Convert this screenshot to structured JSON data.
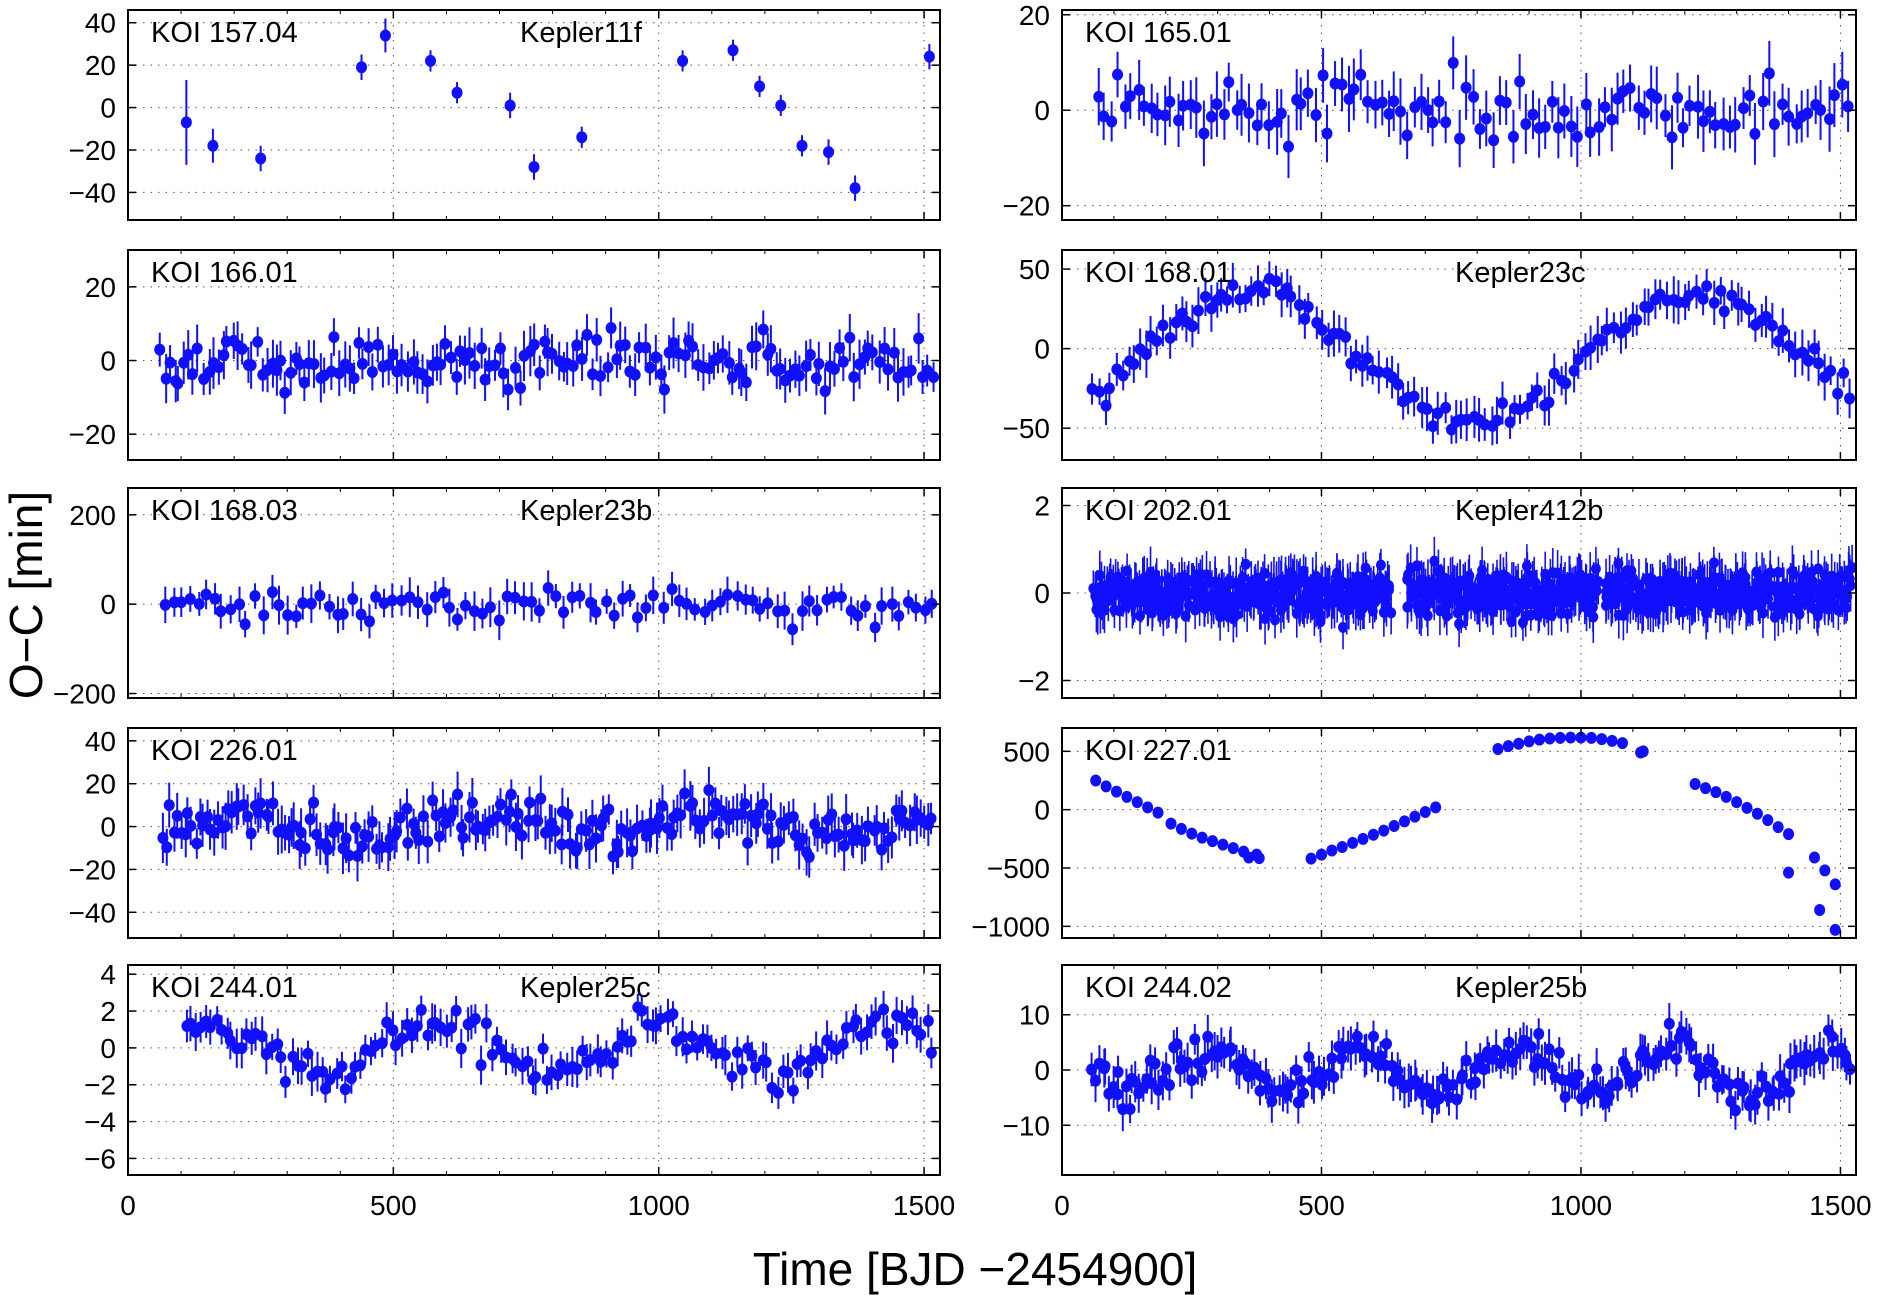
{
  "figure": {
    "xlabel": "Time [BJD −2454900]",
    "ylabel": "O−C [min]",
    "marker_color": "#1010ff",
    "axis_color": "#000000"
  },
  "chart_data": [
    {
      "type": "scatter",
      "title": "KOI 157.04",
      "name": "Kepler11f",
      "xlim": [
        0,
        1530
      ],
      "ylim": [
        -53,
        46
      ],
      "yticks": [
        -40,
        -20,
        0,
        20,
        40
      ],
      "xticks": [
        0,
        500,
        1000,
        1500
      ],
      "ytick_labels": [
        "−40",
        "−20",
        "0",
        "20",
        "40"
      ],
      "xtick_labels": [
        "0",
        "500",
        "1000",
        "1500"
      ],
      "show_xtick_labels": false,
      "x": [
        110,
        160,
        250,
        440,
        485,
        570,
        620,
        720,
        765,
        855,
        1045,
        1140,
        1190,
        1230,
        1270,
        1320,
        1370,
        1510
      ],
      "y": [
        -7,
        -18,
        -24,
        19,
        34,
        22,
        7,
        1,
        -28,
        -14,
        22,
        27,
        10,
        1,
        -18,
        -21,
        -38,
        24
      ],
      "err": [
        20,
        8,
        6,
        6,
        8,
        5,
        5,
        6,
        6,
        5,
        5,
        5,
        5,
        5,
        5,
        6,
        6,
        6
      ]
    },
    {
      "type": "scatter",
      "title": "KOI 165.01",
      "name": "",
      "xlim": [
        0,
        1530
      ],
      "ylim": [
        -23,
        21
      ],
      "yticks": [
        -20,
        0,
        20
      ],
      "xticks": [
        0,
        500,
        1000,
        1500
      ],
      "ytick_labels": [
        "−20",
        "0",
        "20"
      ],
      "xtick_labels": [
        "0",
        "500",
        "1000",
        "1500"
      ],
      "show_xtick_labels": false,
      "x": [
        75,
        90,
        110,
        125,
        145,
        160,
        180,
        195,
        210,
        225,
        245,
        260,
        275,
        300,
        320,
        345,
        370,
        395,
        430,
        450,
        480,
        505,
        530,
        550,
        575,
        600,
        625,
        650,
        675,
        700,
        730,
        760,
        790,
        820,
        860,
        880,
        900,
        930,
        960,
        990,
        1020,
        1050,
        1080,
        1110,
        1140,
        1170,
        1200,
        1230,
        1260,
        1290,
        1320,
        1350,
        1380,
        1410,
        1440,
        1470,
        1500
      ],
      "x_rest": [
        70,
        85,
        100,
        120,
        135,
        150,
        170,
        185,
        200,
        215,
        235,
        250,
        265,
        285,
        310,
        335,
        360,
        380,
        410,
        440,
        465,
        490,
        515,
        540,
        565,
        590,
        615,
        640,
        665,
        690,
        720,
        745,
        775,
        805,
        835,
        870,
        895,
        920,
        950,
        980,
        1010,
        1040,
        1065,
        1095,
        1125,
        1155,
        1185,
        1215,
        1245,
        1275,
        1305,
        1335,
        1365,
        1395,
        1425,
        1455,
        1485,
        1515
      ],
      "seed": 165,
      "npts": 115,
      "spread": 7,
      "err_lo": 4,
      "err_hi": 7
    },
    {
      "type": "scatter",
      "title": "KOI 166.01",
      "name": "",
      "xlim": [
        0,
        1530
      ],
      "ylim": [
        -27,
        30
      ],
      "yticks": [
        -20,
        0,
        20
      ],
      "xticks": [
        0,
        500,
        1000,
        1500
      ],
      "ytick_labels": [
        "−20",
        "0",
        "20"
      ],
      "xtick_labels": [
        "0",
        "500",
        "1000",
        "1500"
      ],
      "show_xtick_labels": false,
      "seed": 166,
      "npts": 160,
      "spread": 7,
      "err_lo": 4,
      "err_hi": 7,
      "x_start": 60,
      "x_end": 1515
    },
    {
      "type": "scatter",
      "title": "KOI 168.01",
      "name": "Kepler23c",
      "xlim": [
        0,
        1530
      ],
      "ylim": [
        -70,
        62
      ],
      "yticks": [
        -50,
        0,
        50
      ],
      "xticks": [
        0,
        500,
        1000,
        1500
      ],
      "ytick_labels": [
        "−50",
        "0",
        "50"
      ],
      "xtick_labels": [
        "0",
        "500",
        "1000",
        "1500"
      ],
      "show_xtick_labels": false,
      "seed": 168,
      "npts": 130,
      "spread": 10,
      "err_lo": 8,
      "err_hi": 15,
      "x_start": 60,
      "x_end": 1515,
      "trend": "koi168"
    },
    {
      "type": "scatter",
      "title": "KOI 168.03",
      "name": "Kepler23b",
      "xlim": [
        0,
        1530
      ],
      "ylim": [
        -210,
        260
      ],
      "yticks": [
        -200,
        0,
        200
      ],
      "xticks": [
        0,
        500,
        1000,
        1500
      ],
      "ytick_labels": [
        "−200",
        "0",
        "200"
      ],
      "xtick_labels": [
        "0",
        "500",
        "1000",
        "1500"
      ],
      "show_xtick_labels": false,
      "seed": 1683,
      "npts": 95,
      "spread": 45,
      "err_lo": 25,
      "err_hi": 45,
      "x_start": 70,
      "x_end": 1515
    },
    {
      "type": "scatter",
      "title": "KOI 202.01",
      "name": "Kepler412b",
      "xlim": [
        0,
        1530
      ],
      "ylim": [
        -2.4,
        2.4
      ],
      "yticks": [
        -2,
        0,
        2
      ],
      "xticks": [
        0,
        500,
        1000,
        1500
      ],
      "ytick_labels": [
        "−2",
        "0",
        "2"
      ],
      "xtick_labels": [
        "0",
        "500",
        "1000",
        "1500"
      ],
      "show_xtick_labels": false,
      "seed": 202,
      "npts": 900,
      "spread": 0.55,
      "err_lo": 0.35,
      "err_hi": 0.6,
      "x_start": 60,
      "x_end": 1520,
      "gaps": [
        [
          635,
          665
        ],
        [
          1035,
          1045
        ]
      ]
    },
    {
      "type": "scatter",
      "title": "KOI 226.01",
      "name": "",
      "xlim": [
        0,
        1530
      ],
      "ylim": [
        -52,
        46
      ],
      "yticks": [
        -40,
        -20,
        0,
        20,
        40
      ],
      "xticks": [
        0,
        500,
        1000,
        1500
      ],
      "ytick_labels": [
        "−40",
        "−20",
        "0",
        "20",
        "40"
      ],
      "xtick_labels": [
        "0",
        "500",
        "1000",
        "1500"
      ],
      "show_xtick_labels": false,
      "seed": 226,
      "npts": 210,
      "spread": 12,
      "err_lo": 7,
      "err_hi": 12,
      "x_start": 65,
      "x_end": 1515
    },
    {
      "type": "scatter",
      "title": "KOI 227.01",
      "name": "",
      "xlim": [
        0,
        1530
      ],
      "ylim": [
        -1100,
        700
      ],
      "yticks": [
        -1000,
        -500,
        0,
        500
      ],
      "xticks": [
        0,
        500,
        1000,
        1500
      ],
      "ytick_labels": [
        "−1000",
        "−500",
        "0",
        "500"
      ],
      "xtick_labels": [
        "0",
        "500",
        "1000",
        "1500"
      ],
      "show_xtick_labels": false,
      "x": [
        65,
        85,
        105,
        125,
        145,
        165,
        185,
        210,
        230,
        250,
        270,
        290,
        310,
        330,
        350,
        375,
        480,
        500,
        520,
        540,
        560,
        580,
        600,
        620,
        640,
        660,
        680,
        700,
        720,
        840,
        860,
        880,
        900,
        920,
        940,
        960,
        980,
        1000,
        1020,
        1040,
        1060,
        1080,
        1120,
        1220,
        1240,
        1260,
        1280,
        1300,
        1320,
        1340,
        1360,
        1380,
        1400,
        1450,
        1470,
        1490
      ],
      "y": [
        250,
        200,
        155,
        110,
        65,
        20,
        -25,
        -120,
        -165,
        -205,
        -240,
        -270,
        -300,
        -330,
        -360,
        -385,
        -420,
        -385,
        -350,
        -320,
        -285,
        -250,
        -215,
        -180,
        -140,
        -100,
        -60,
        -20,
        20,
        520,
        545,
        565,
        585,
        600,
        610,
        615,
        618,
        618,
        615,
        605,
        590,
        570,
        500,
        220,
        185,
        150,
        110,
        65,
        15,
        -35,
        -90,
        -150,
        -210,
        -410,
        -520,
        -640
      ],
      "x_extra": [
        360,
        380,
        1115,
        1400,
        1460,
        1490
      ],
      "y_extra": [
        -410,
        -415,
        490,
        -540,
        -860,
        -1030
      ],
      "err": [
        10
      ]
    },
    {
      "type": "scatter",
      "title": "KOI 244.01",
      "name": "Kepler25c",
      "xlim": [
        0,
        1530
      ],
      "ylim": [
        -6.9,
        4.5
      ],
      "yticks": [
        -6,
        -4,
        -2,
        0,
        2,
        4
      ],
      "xticks": [
        0,
        500,
        1000,
        1500
      ],
      "ytick_labels": [
        "−6",
        "−4",
        "−2",
        "0",
        "2",
        "4"
      ],
      "xtick_labels": [
        "0",
        "500",
        "1000",
        "1500"
      ],
      "show_xtick_labels": true,
      "seed": 244,
      "npts": 150,
      "spread": 1.2,
      "err_lo": 0.7,
      "err_hi": 1.1,
      "x_start": 110,
      "x_end": 1515
    },
    {
      "type": "scatter",
      "title": "KOI 244.02",
      "name": "Kepler25b",
      "xlim": [
        0,
        1530
      ],
      "ylim": [
        -19,
        19
      ],
      "yticks": [
        -10,
        0,
        10
      ],
      "xticks": [
        0,
        500,
        1000,
        1500
      ],
      "ytick_labels": [
        "−10",
        "0",
        "10"
      ],
      "xtick_labels": [
        "0",
        "500",
        "1000",
        "1500"
      ],
      "show_xtick_labels": true,
      "seed": 2442,
      "npts": 230,
      "spread": 4,
      "err_lo": 2.5,
      "err_hi": 4,
      "x_start": 60,
      "x_end": 1520
    }
  ]
}
